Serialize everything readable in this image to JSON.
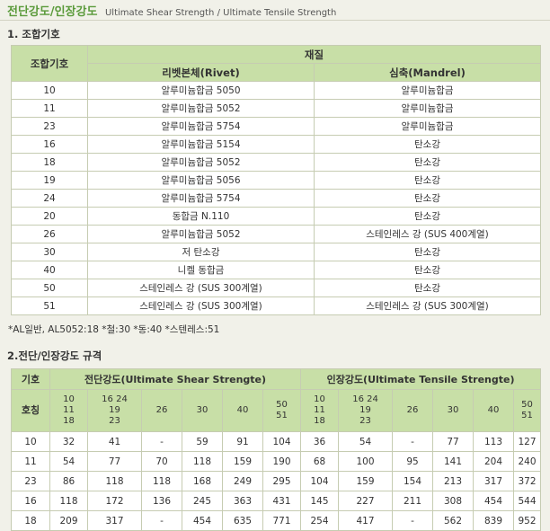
{
  "header": {
    "title": "전단강도/인장강도",
    "subtitle": "Ultimate Shear Strength / Ultimate Tensile Strength"
  },
  "section1": {
    "heading": "1. 조합기호",
    "col_code": "조합기호",
    "col_material": "재질",
    "col_rivet": "리벳본체(Rivet)",
    "col_mandrel": "심축(Mandrel)",
    "rows": [
      {
        "code": "10",
        "rivet": "알루미늄합금 5050",
        "mandrel": "알루미늄합금"
      },
      {
        "code": "11",
        "rivet": "알루미늄합금 5052",
        "mandrel": "알루미늄합금"
      },
      {
        "code": "23",
        "rivet": "알루미늄합금 5754",
        "mandrel": "알루미늄합금"
      },
      {
        "code": "16",
        "rivet": "알루미늄합금 5154",
        "mandrel": "탄소강"
      },
      {
        "code": "18",
        "rivet": "알루미늄합금 5052",
        "mandrel": "탄소강"
      },
      {
        "code": "19",
        "rivet": "알루미늄합금 5056",
        "mandrel": "탄소강"
      },
      {
        "code": "24",
        "rivet": "알루미늄합금 5754",
        "mandrel": "탄소강"
      },
      {
        "code": "20",
        "rivet": "동합금 N.110",
        "mandrel": "탄소강"
      },
      {
        "code": "26",
        "rivet": "알루미늄합금 5052",
        "mandrel": "스테인레스 강 (SUS 400계열)"
      },
      {
        "code": "30",
        "rivet": "저 탄소강",
        "mandrel": "탄소강"
      },
      {
        "code": "40",
        "rivet": "니켈 동합금",
        "mandrel": "탄소강"
      },
      {
        "code": "50",
        "rivet": "스테인레스 강 (SUS 300계열)",
        "mandrel": "탄소강"
      },
      {
        "code": "51",
        "rivet": "스테인레스 강 (SUS 300계열)",
        "mandrel": "스테인레스 강 (SUS 300계열)"
      }
    ],
    "note": "*AL일반, AL5052:18 *철:30 *동:40 *스텐레스:51"
  },
  "section2": {
    "heading": "2.전단/인장강도 규격",
    "col_symbol": "기호",
    "col_size": "호칭",
    "shear_title": "전단강도(Ultimate Shear Strengte)",
    "tensile_title": "인장강도(Ultimate Tensile Strengte)",
    "groups": [
      "10\n11\n18",
      "16 24\n19\n23",
      "26",
      "30",
      "40",
      "50\n51"
    ],
    "rows": [
      {
        "size": "10",
        "shear": [
          "32",
          "41",
          "-",
          "59",
          "91",
          "104"
        ],
        "tensile": [
          "36",
          "54",
          "-",
          "77",
          "113",
          "127"
        ]
      },
      {
        "size": "11",
        "shear": [
          "54",
          "77",
          "70",
          "118",
          "159",
          "190"
        ],
        "tensile": [
          "68",
          "100",
          "95",
          "141",
          "204",
          "240"
        ]
      },
      {
        "size": "23",
        "shear": [
          "86",
          "118",
          "118",
          "168",
          "249",
          "295"
        ],
        "tensile": [
          "104",
          "159",
          "154",
          "213",
          "317",
          "372"
        ]
      },
      {
        "size": "16",
        "shear": [
          "118",
          "172",
          "136",
          "245",
          "363",
          "431"
        ],
        "tensile": [
          "145",
          "227",
          "211",
          "308",
          "454",
          "544"
        ]
      },
      {
        "size": "18",
        "shear": [
          "209",
          "317",
          "-",
          "454",
          "635",
          "771"
        ],
        "tensile": [
          "254",
          "417",
          "-",
          "562",
          "839",
          "952"
        ]
      }
    ]
  }
}
